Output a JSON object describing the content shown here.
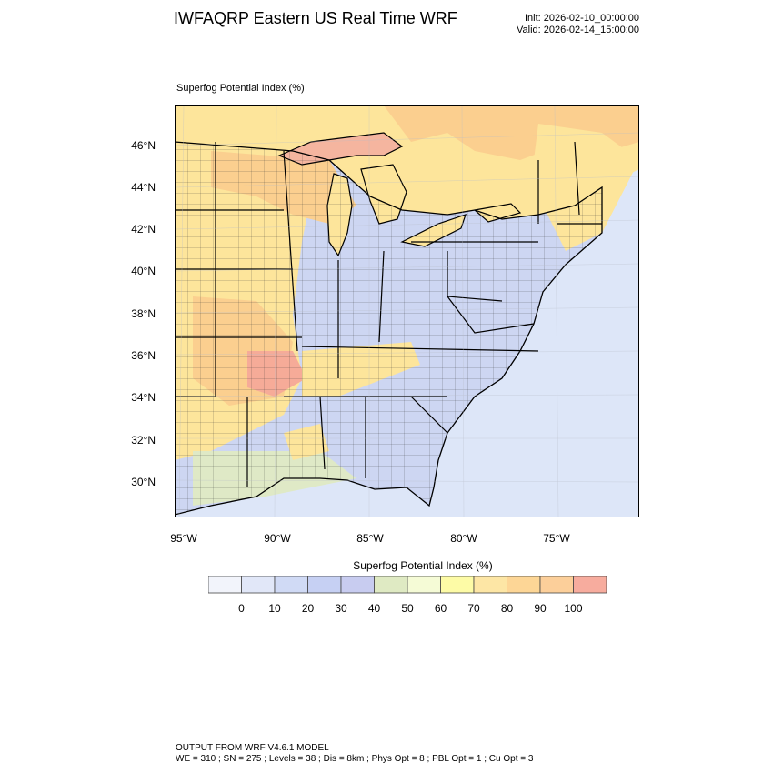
{
  "header": {
    "title": "IWFAQRP Eastern US Real Time WRF",
    "init": "Init: 2026-02-10_00:00:00",
    "valid": "Valid: 2026-02-14_15:00:00"
  },
  "map": {
    "title": "Superfog Potential Index   (%)",
    "lat_labels": [
      "46°N",
      "44°N",
      "42°N",
      "40°N",
      "38°N",
      "36°N",
      "34°N",
      "32°N",
      "30°N"
    ],
    "lon_labels": [
      "95°W",
      "90°W",
      "85°W",
      "80°W",
      "75°W"
    ],
    "colors": {
      "ocean": "#dde6f8",
      "land_low": "#cdd6f2",
      "land_mid": "#dfe9c6",
      "warm": "#fde59b",
      "orange": "#fbcf8f",
      "red": "#f6ab98",
      "water": "#f5b59f"
    }
  },
  "colorbar": {
    "title": "Superfog Potential Index  (%)",
    "labels": [
      "0",
      "10",
      "20",
      "30",
      "40",
      "50",
      "60",
      "70",
      "80",
      "90",
      "100"
    ],
    "colors": [
      "#f2f4fb",
      "#e1e7f8",
      "#d0daf5",
      "#c6d0f3",
      "#c8ccf0",
      "#dfeac3",
      "#f5fbd6",
      "#fdfba6",
      "#fde6a5",
      "#fdd696",
      "#fccf9a",
      "#f7ac9e"
    ]
  },
  "footer": {
    "line1": "OUTPUT FROM WRF V4.6.1 MODEL",
    "line2": "WE = 310 ; SN = 275 ; Levels = 38 ; Dis = 8km ; Phys Opt = 8 ; PBL Opt = 1 ; Cu Opt = 3"
  }
}
